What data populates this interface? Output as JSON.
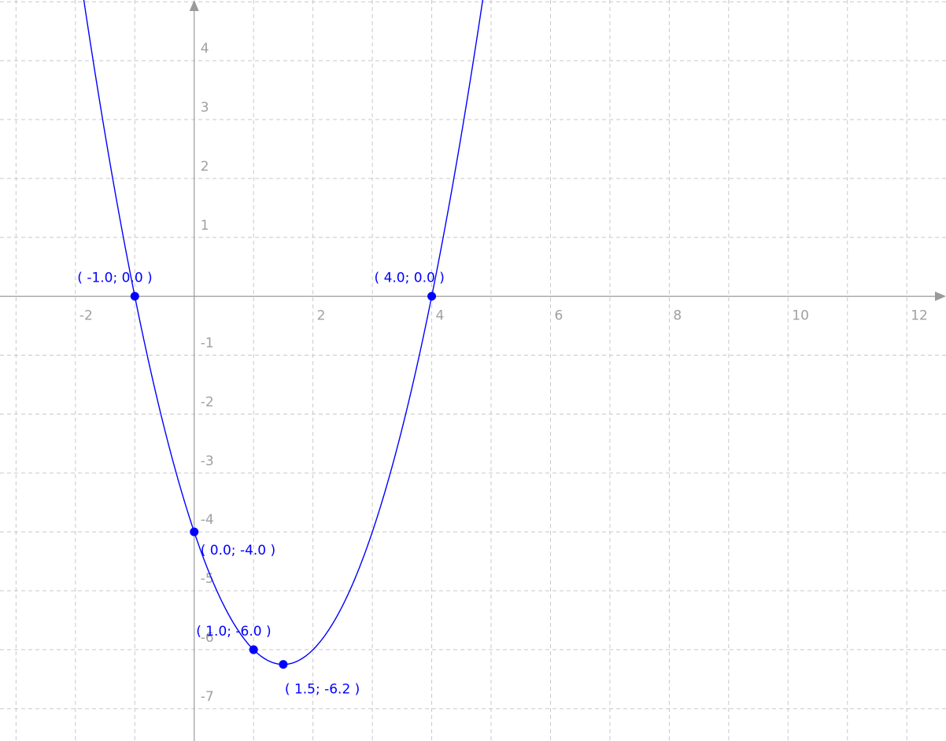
{
  "chart_data": {
    "type": "line",
    "title": "",
    "xlabel": "",
    "ylabel": "",
    "xlim": [
      -3.27,
      12.66
    ],
    "ylim": [
      -7.55,
      5.03
    ],
    "grid": true,
    "x_grid_step": 1,
    "y_grid_step": 1,
    "x_ticks": [
      {
        "value": -2,
        "label": "-2"
      },
      {
        "value": 2,
        "label": "2"
      },
      {
        "value": 4,
        "label": "4"
      },
      {
        "value": 6,
        "label": "6"
      },
      {
        "value": 8,
        "label": "8"
      },
      {
        "value": 10,
        "label": "10"
      },
      {
        "value": 12,
        "label": "12"
      }
    ],
    "y_ticks": [
      {
        "value": 4,
        "label": "4"
      },
      {
        "value": 3,
        "label": "3"
      },
      {
        "value": 2,
        "label": "2"
      },
      {
        "value": 1,
        "label": "1"
      },
      {
        "value": -1,
        "label": "-1"
      },
      {
        "value": -2,
        "label": "-2"
      },
      {
        "value": -3,
        "label": "-3"
      },
      {
        "value": -4,
        "label": "-4"
      },
      {
        "value": -5,
        "label": "-5"
      },
      {
        "value": -6,
        "label": "-6"
      },
      {
        "value": -7,
        "label": "-7"
      }
    ],
    "series": [
      {
        "function": "x^2 - 3x - 4",
        "coefficients": {
          "a": 1,
          "b": -3,
          "c": -4
        },
        "color": "#0000ff"
      }
    ],
    "points": [
      {
        "x": -1.0,
        "y": 0.0,
        "label": "( -1.0; 0.0 )",
        "label_pos": "above"
      },
      {
        "x": 4.0,
        "y": 0.0,
        "label": "( 4.0; 0.0 )",
        "label_pos": "above"
      },
      {
        "x": 0.0,
        "y": -4.0,
        "label": "( 0.0; -4.0 )",
        "label_pos": "below-right"
      },
      {
        "x": 1.0,
        "y": -6.0,
        "label": "( 1.0; -6.0 )",
        "label_pos": "above"
      },
      {
        "x": 1.5,
        "y": -6.25,
        "label": "( 1.5; -6.2 )",
        "label_pos": "below"
      }
    ]
  }
}
